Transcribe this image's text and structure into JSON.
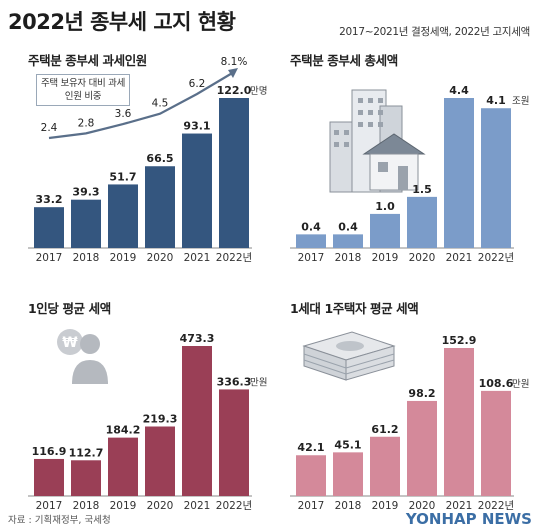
{
  "title": "2022년 종부세 고지 현황",
  "note": "2017~2021년 결정세액, 2022년 고지세액",
  "source": "자료 : 기획재정부, 국세청",
  "logo": "YONHAP NEWS",
  "colors": {
    "navy": "#34567f",
    "steel": "#7b9cc9",
    "maroon": "#9a3f56",
    "pink": "#d4899a"
  },
  "chart_data": [
    {
      "type": "bar",
      "title": "주택분 종부세 과세인원",
      "categories": [
        "2017",
        "2018",
        "2019",
        "2020",
        "2021",
        "2022년"
      ],
      "values": [
        33.2,
        39.3,
        51.7,
        66.5,
        93.1,
        122.0
      ],
      "value_labels": [
        "33.2",
        "39.3",
        "51.7",
        "66.5",
        "93.1",
        "122.0"
      ],
      "unit": "만명",
      "line_series": {
        "name": "주택 보유자 대비 과세인원 비중",
        "values": [
          2.4,
          2.8,
          3.6,
          4.5,
          6.2,
          8.1
        ],
        "labels": [
          "2.4",
          "2.8",
          "3.6",
          "4.5",
          "6.2",
          "8.1%"
        ]
      }
    },
    {
      "type": "bar",
      "title": "주택분 종부세 총세액",
      "categories": [
        "2017",
        "2018",
        "2019",
        "2020",
        "2021",
        "2022년"
      ],
      "values": [
        0.4,
        0.4,
        1.0,
        1.5,
        4.4,
        4.1
      ],
      "value_labels": [
        "0.4",
        "0.4",
        "1.0",
        "1.5",
        "4.4",
        "4.1"
      ],
      "unit": "조원"
    },
    {
      "type": "bar",
      "title": "1인당 평균 세액",
      "categories": [
        "2017",
        "2018",
        "2019",
        "2020",
        "2021",
        "2022년"
      ],
      "values": [
        116.9,
        112.7,
        184.2,
        219.3,
        473.3,
        336.3
      ],
      "value_labels": [
        "116.9",
        "112.7",
        "184.2",
        "219.3",
        "473.3",
        "336.3"
      ],
      "unit": "만원"
    },
    {
      "type": "bar",
      "title": "1세대 1주택자 평균 세액",
      "categories": [
        "2017",
        "2018",
        "2019",
        "2020",
        "2021",
        "2022년"
      ],
      "values": [
        42.1,
        45.1,
        61.2,
        98.2,
        152.9,
        108.6
      ],
      "value_labels": [
        "42.1",
        "45.1",
        "61.2",
        "98.2",
        "152.9",
        "108.6"
      ],
      "unit": "만원"
    }
  ]
}
